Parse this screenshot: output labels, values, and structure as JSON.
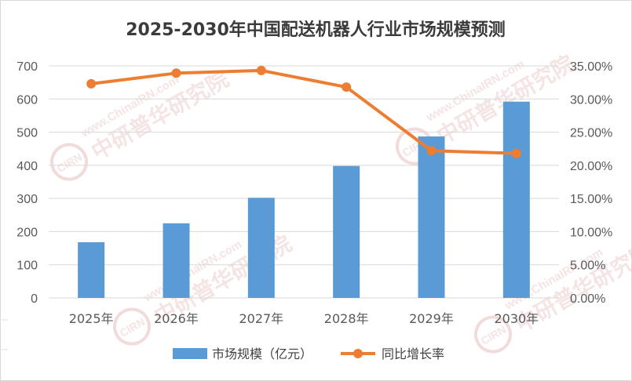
{
  "watermark": {
    "url": "www.ChinaIRN.com",
    "name": "中研普华研究院",
    "logo": "CIRN",
    "color": "#e6b8b8"
  },
  "chart_data": {
    "type": "bar+line",
    "title": "2025-2030年中国配送机器人行业市场规模预测",
    "categories": [
      "2025年",
      "2026年",
      "2027年",
      "2028年",
      "2029年",
      "2030年"
    ],
    "series": [
      {
        "name": "市场规模（亿元）",
        "type": "bar",
        "axis": "left",
        "color": "#5b9bd5",
        "values": [
          168,
          225,
          302,
          398,
          487,
          592
        ]
      },
      {
        "name": "同比增长率",
        "type": "line",
        "axis": "right",
        "color": "#ed7d31",
        "values": [
          32.3,
          33.9,
          34.3,
          31.8,
          22.2,
          21.8
        ]
      }
    ],
    "y_left": {
      "ylim": [
        0,
        700
      ],
      "ticks": [
        "0",
        "100",
        "200",
        "300",
        "400",
        "500",
        "600",
        "700"
      ]
    },
    "y_right": {
      "ylim": [
        0,
        35
      ],
      "ticks": [
        "0.00%",
        "5.00%",
        "10.00%",
        "15.00%",
        "20.00%",
        "25.00%",
        "30.00%",
        "35.00%"
      ]
    },
    "grid": true,
    "legend_position": "bottom"
  }
}
